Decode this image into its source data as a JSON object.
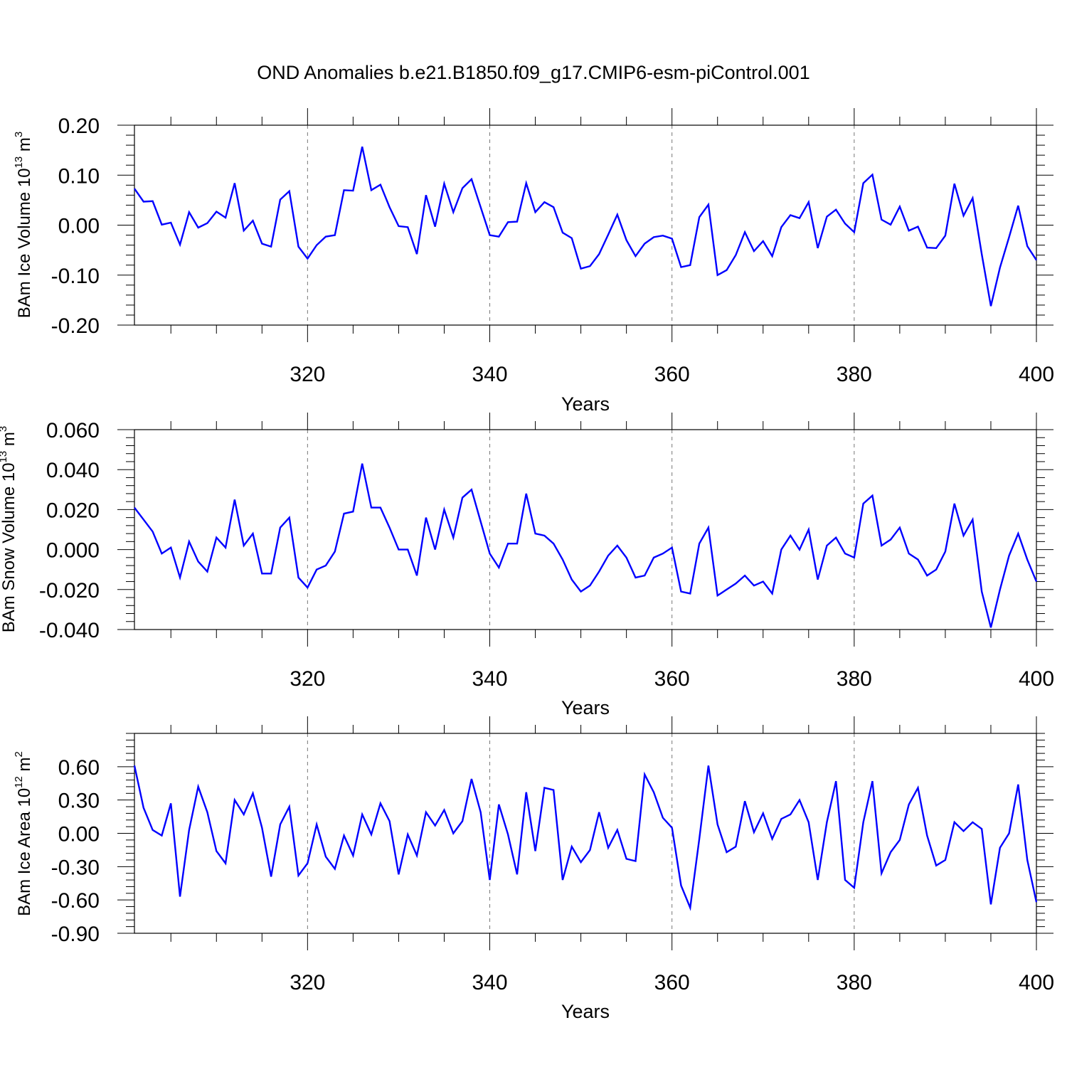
{
  "title": "OND Anomalies b.e21.B1850.f09_g17.CMIP6-esm-piControl.001",
  "line_color": "#0000ff",
  "chart_data": [
    {
      "type": "line",
      "ylabel": {
        "main": "BAm Ice Volume 10",
        "sup": "13",
        "unit": " m",
        "unit_sup": "3"
      },
      "xlabel": "Years",
      "xlim": [
        301,
        400
      ],
      "ylim": [
        -0.2,
        0.2
      ],
      "yticks": [
        "-0.20",
        "-0.10",
        "0.00",
        "0.10",
        "0.20"
      ],
      "xticks": [
        "320",
        "340",
        "360",
        "380",
        "400"
      ],
      "x": [
        301,
        302,
        303,
        304,
        305,
        306,
        307,
        308,
        309,
        310,
        311,
        312,
        313,
        314,
        315,
        316,
        317,
        318,
        319,
        320,
        321,
        322,
        323,
        324,
        325,
        326,
        327,
        328,
        329,
        330,
        331,
        332,
        333,
        334,
        335,
        336,
        337,
        338,
        339,
        340,
        341,
        342,
        343,
        344,
        345,
        346,
        347,
        348,
        349,
        350,
        351,
        352,
        353,
        354,
        355,
        356,
        357,
        358,
        359,
        360,
        361,
        362,
        363,
        364,
        365,
        366,
        367,
        368,
        369,
        370,
        371,
        372,
        373,
        374,
        375,
        376,
        377,
        378,
        379,
        380,
        381,
        382,
        383,
        384,
        385,
        386,
        387,
        388,
        389,
        390,
        391,
        392,
        393,
        394,
        395,
        396,
        397,
        398,
        399,
        400
      ],
      "values": [
        0.073,
        0.047,
        0.048,
        0.001,
        0.005,
        -0.039,
        0.026,
        -0.005,
        0.004,
        0.027,
        0.015,
        0.084,
        -0.011,
        0.009,
        -0.037,
        -0.043,
        0.051,
        0.068,
        -0.043,
        -0.067,
        -0.04,
        -0.023,
        -0.02,
        0.07,
        0.069,
        0.157,
        0.07,
        0.081,
        0.036,
        -0.002,
        -0.004,
        -0.058,
        0.06,
        -0.003,
        0.083,
        0.026,
        0.074,
        0.092,
        0.036,
        -0.02,
        -0.023,
        0.006,
        0.007,
        0.084,
        0.026,
        0.046,
        0.036,
        -0.015,
        -0.026,
        -0.087,
        -0.082,
        -0.058,
        -0.019,
        0.021,
        -0.03,
        -0.062,
        -0.037,
        -0.024,
        -0.021,
        -0.027,
        -0.084,
        -0.08,
        0.016,
        0.041,
        -0.1,
        -0.09,
        -0.06,
        -0.014,
        -0.052,
        -0.032,
        -0.062,
        -0.004,
        0.02,
        0.014,
        0.046,
        -0.046,
        0.017,
        0.031,
        0.003,
        -0.014,
        0.084,
        0.101,
        0.011,
        0.001,
        0.037,
        -0.011,
        -0.003,
        -0.045,
        -0.046,
        -0.021,
        0.083,
        0.019,
        0.054,
        -0.058,
        -0.162,
        -0.085,
        -0.024,
        0.039,
        -0.042,
        -0.07
      ]
    },
    {
      "type": "line",
      "ylabel": {
        "main": "BAm Snow Volume 10",
        "sup": "13",
        "unit": " m",
        "unit_sup": "3"
      },
      "xlabel": "Years",
      "xlim": [
        301,
        400
      ],
      "ylim": [
        -0.04,
        0.06
      ],
      "yticks": [
        "-0.040",
        "-0.020",
        "0.000",
        "0.020",
        "0.040",
        "0.060"
      ],
      "xticks": [
        "320",
        "340",
        "360",
        "380",
        "400"
      ],
      "x": [
        301,
        302,
        303,
        304,
        305,
        306,
        307,
        308,
        309,
        310,
        311,
        312,
        313,
        314,
        315,
        316,
        317,
        318,
        319,
        320,
        321,
        322,
        323,
        324,
        325,
        326,
        327,
        328,
        329,
        330,
        331,
        332,
        333,
        334,
        335,
        336,
        337,
        338,
        339,
        340,
        341,
        342,
        343,
        344,
        345,
        346,
        347,
        348,
        349,
        350,
        351,
        352,
        353,
        354,
        355,
        356,
        357,
        358,
        359,
        360,
        361,
        362,
        363,
        364,
        365,
        366,
        367,
        368,
        369,
        370,
        371,
        372,
        373,
        374,
        375,
        376,
        377,
        378,
        379,
        380,
        381,
        382,
        383,
        384,
        385,
        386,
        387,
        388,
        389,
        390,
        391,
        392,
        393,
        394,
        395,
        396,
        397,
        398,
        399,
        400
      ],
      "values": [
        0.021,
        0.015,
        0.009,
        -0.002,
        0.001,
        -0.014,
        0.004,
        -0.006,
        -0.011,
        0.006,
        0.001,
        0.025,
        0.002,
        0.008,
        -0.012,
        -0.012,
        0.011,
        0.016,
        -0.014,
        -0.019,
        -0.01,
        -0.008,
        -0.001,
        0.018,
        0.019,
        0.043,
        0.021,
        0.021,
        0.011,
        0.0,
        0.0,
        -0.013,
        0.016,
        0.0,
        0.02,
        0.006,
        0.026,
        0.03,
        0.014,
        -0.002,
        -0.009,
        0.003,
        0.003,
        0.028,
        0.008,
        0.007,
        0.003,
        -0.005,
        -0.015,
        -0.021,
        -0.018,
        -0.011,
        -0.003,
        0.002,
        -0.004,
        -0.014,
        -0.013,
        -0.004,
        -0.002,
        0.001,
        -0.021,
        -0.022,
        0.003,
        0.011,
        -0.023,
        -0.02,
        -0.017,
        -0.013,
        -0.018,
        -0.016,
        -0.022,
        0.0,
        0.007,
        0.0,
        0.01,
        -0.015,
        0.002,
        0.006,
        -0.002,
        -0.004,
        0.023,
        0.027,
        0.002,
        0.005,
        0.011,
        -0.002,
        -0.005,
        -0.013,
        -0.01,
        -0.001,
        0.023,
        0.007,
        0.015,
        -0.021,
        -0.039,
        -0.02,
        -0.003,
        0.008,
        -0.005,
        -0.016
      ]
    },
    {
      "type": "line",
      "ylabel": {
        "main": "BAm Ice Area 10",
        "sup": "12",
        "unit": " m",
        "unit_sup": "2"
      },
      "xlabel": "Years",
      "xlim": [
        301,
        400
      ],
      "ylim": [
        -0.9,
        0.9
      ],
      "yticks": [
        "-0.90",
        "-0.60",
        "-0.30",
        "0.00",
        "0.30",
        "0.60"
      ],
      "xticks": [
        "320",
        "340",
        "360",
        "380",
        "400"
      ],
      "x": [
        301,
        302,
        303,
        304,
        305,
        306,
        307,
        308,
        309,
        310,
        311,
        312,
        313,
        314,
        315,
        316,
        317,
        318,
        319,
        320,
        321,
        322,
        323,
        324,
        325,
        326,
        327,
        328,
        329,
        330,
        331,
        332,
        333,
        334,
        335,
        336,
        337,
        338,
        339,
        340,
        341,
        342,
        343,
        344,
        345,
        346,
        347,
        348,
        349,
        350,
        351,
        352,
        353,
        354,
        355,
        356,
        357,
        358,
        359,
        360,
        361,
        362,
        363,
        364,
        365,
        366,
        367,
        368,
        369,
        370,
        371,
        372,
        373,
        374,
        375,
        376,
        377,
        378,
        379,
        380,
        381,
        382,
        383,
        384,
        385,
        386,
        387,
        388,
        389,
        390,
        391,
        392,
        393,
        394,
        395,
        396,
        397,
        398,
        399,
        400
      ],
      "values": [
        0.61,
        0.23,
        0.03,
        -0.02,
        0.27,
        -0.57,
        0.03,
        0.42,
        0.19,
        -0.16,
        -0.27,
        0.3,
        0.17,
        0.36,
        0.05,
        -0.39,
        0.08,
        0.24,
        -0.38,
        -0.27,
        0.08,
        -0.21,
        -0.32,
        -0.02,
        -0.2,
        0.17,
        -0.01,
        0.27,
        0.11,
        -0.37,
        -0.01,
        -0.2,
        0.19,
        0.07,
        0.21,
        0.0,
        0.11,
        0.49,
        0.19,
        -0.42,
        0.26,
        -0.01,
        -0.37,
        0.37,
        -0.16,
        0.41,
        0.39,
        -0.42,
        -0.12,
        -0.26,
        -0.15,
        0.19,
        -0.13,
        0.03,
        -0.23,
        -0.25,
        0.53,
        0.37,
        0.14,
        0.05,
        -0.47,
        -0.67,
        -0.05,
        0.61,
        0.08,
        -0.17,
        -0.12,
        0.29,
        0.01,
        0.18,
        -0.05,
        0.13,
        0.17,
        0.3,
        0.1,
        -0.42,
        0.1,
        0.47,
        -0.42,
        -0.49,
        0.1,
        0.47,
        -0.36,
        -0.17,
        -0.06,
        0.26,
        0.41,
        -0.02,
        -0.29,
        -0.24,
        0.1,
        0.02,
        0.1,
        0.04,
        -0.64,
        -0.13,
        0.0,
        0.44,
        -0.24,
        -0.62
      ]
    }
  ]
}
